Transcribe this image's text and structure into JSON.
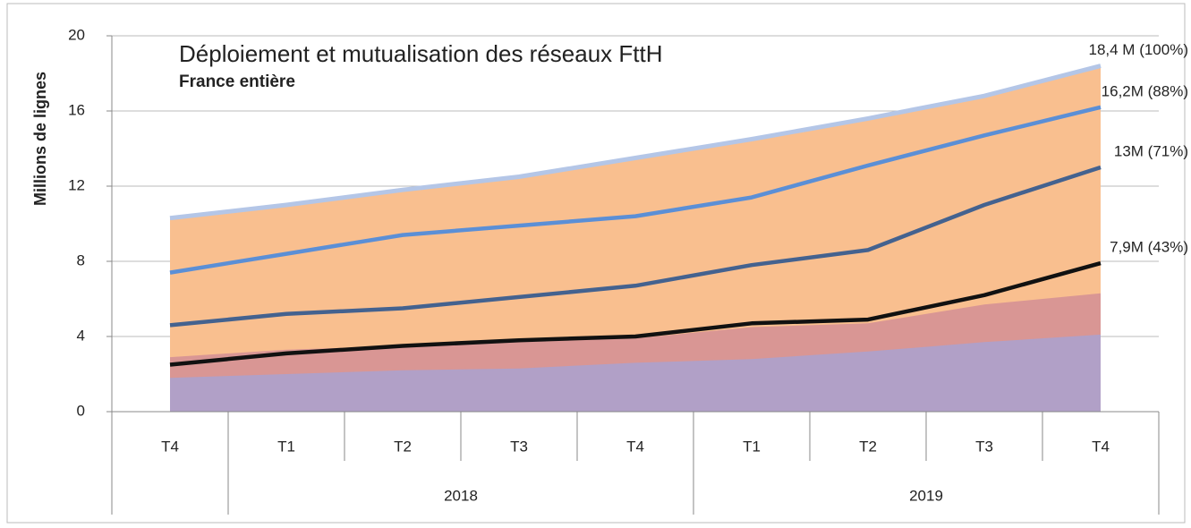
{
  "chart_data": {
    "type": "area",
    "title": "Déploiement et mutualisation des réseaux FttH",
    "subtitle": "France entière",
    "y_label": "Millions de lignes",
    "categories": [
      "T4",
      "T1",
      "T2",
      "T3",
      "T4",
      "T1",
      "T2",
      "T3",
      "T4"
    ],
    "x_groups": [
      null,
      "2018",
      "2018",
      "2018",
      "2018",
      "2019",
      "2019",
      "2019",
      "2019"
    ],
    "ylim": [
      0,
      20
    ],
    "yticks": [
      0,
      4,
      8,
      12,
      16,
      20
    ],
    "grid": true,
    "series": [
      {
        "kind": "area",
        "color": "#f9bf8f",
        "edge_color": "#b4c6e7",
        "values": [
          10.3,
          11.0,
          11.8,
          12.5,
          13.5,
          14.5,
          15.6,
          16.8,
          18.4
        ],
        "value_labels": [
          null,
          null,
          null,
          null,
          null,
          null,
          null,
          null,
          "18,4 M (100%)"
        ]
      },
      {
        "kind": "area",
        "color": "#d99694",
        "values": [
          2.9,
          3.3,
          3.5,
          3.7,
          3.9,
          4.5,
          4.7,
          5.7,
          6.3
        ]
      },
      {
        "kind": "area",
        "color": "#b1a0c7",
        "values": [
          1.8,
          2.0,
          2.2,
          2.3,
          2.6,
          2.8,
          3.2,
          3.7,
          4.1
        ]
      },
      {
        "kind": "line",
        "color": "#5b8fd6",
        "values": [
          7.4,
          8.4,
          9.4,
          9.9,
          10.4,
          11.4,
          13.1,
          14.7,
          16.2
        ],
        "value_labels": [
          null,
          null,
          null,
          null,
          null,
          null,
          null,
          null,
          "16,2M (88%)"
        ]
      },
      {
        "kind": "line",
        "color": "#44628f",
        "values": [
          4.6,
          5.2,
          5.5,
          6.1,
          6.7,
          7.8,
          8.6,
          11.0,
          13
        ],
        "value_labels": [
          null,
          null,
          null,
          null,
          null,
          null,
          null,
          null,
          "13M (71%)"
        ]
      },
      {
        "kind": "line",
        "color": "#111111",
        "values": [
          2.5,
          3.1,
          3.5,
          3.8,
          4.0,
          4.7,
          4.9,
          6.2,
          7.9
        ],
        "value_labels": [
          null,
          null,
          null,
          null,
          null,
          null,
          null,
          null,
          "7,9M (43%)"
        ]
      }
    ]
  }
}
